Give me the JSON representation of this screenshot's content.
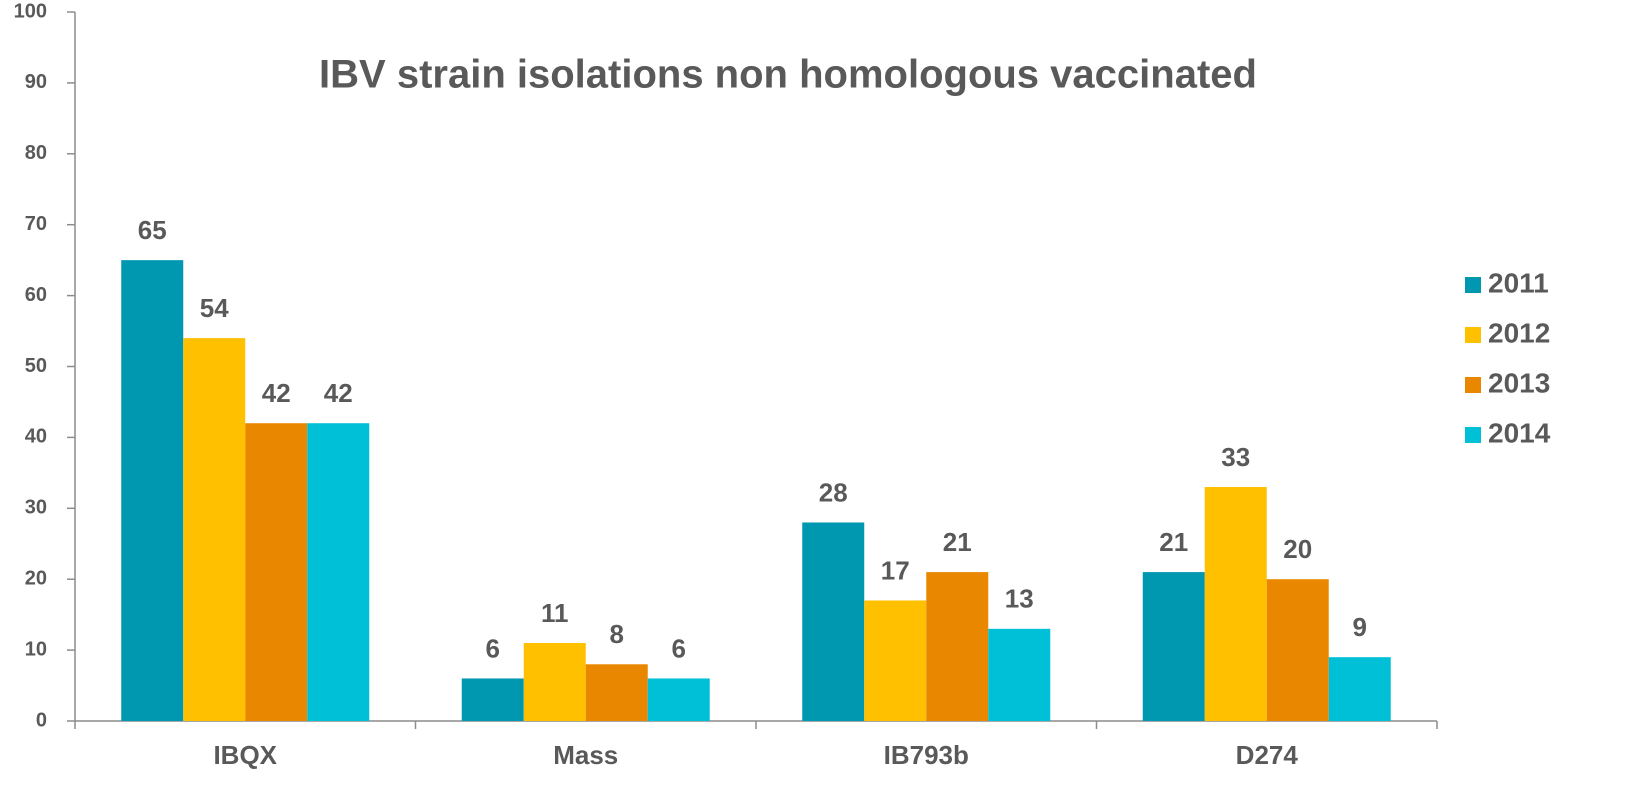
{
  "chart_data": {
    "type": "bar",
    "title": "IBV strain isolations  non homologous vaccinated",
    "categories": [
      "IBQX",
      "Mass",
      "IB793b",
      "D274"
    ],
    "series": [
      {
        "name": "2011",
        "color": "#0097b0",
        "values": [
          65,
          6,
          28,
          21
        ]
      },
      {
        "name": "2012",
        "color": "#ffc000",
        "values": [
          54,
          11,
          17,
          33
        ]
      },
      {
        "name": "2013",
        "color": "#e98800",
        "values": [
          42,
          8,
          21,
          20
        ]
      },
      {
        "name": "2014",
        "color": "#00c0d8",
        "values": [
          42,
          6,
          13,
          9
        ]
      }
    ],
    "ylim": [
      0,
      100
    ],
    "yticks": [
      0,
      10,
      20,
      30,
      40,
      50,
      60,
      70,
      80,
      90,
      100
    ],
    "legend": "right"
  }
}
